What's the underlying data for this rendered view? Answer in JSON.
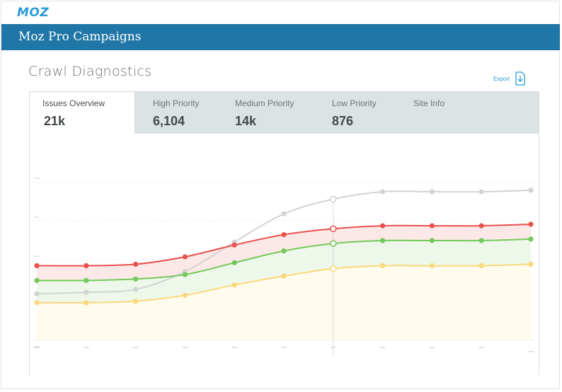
{
  "brand": {
    "logo_text": "MOZ"
  },
  "header": {
    "title": "Moz Pro Campaigns"
  },
  "page": {
    "title": "Crawl Diagnostics",
    "export_label": "Export"
  },
  "tabs": [
    {
      "label": "Issues Overview",
      "value": "21k",
      "active": true
    },
    {
      "label": "High Priority",
      "value": "6,104",
      "active": false
    },
    {
      "label": "Medium Priority",
      "value": "14k",
      "active": false
    },
    {
      "label": "Low Priority",
      "value": "876",
      "active": false
    },
    {
      "label": "Site Info",
      "value": "",
      "active": false
    }
  ],
  "colors": {
    "header": "#2076a6",
    "accent": "#2a9bd6",
    "high": "#e8524e",
    "medium": "#73c95b",
    "low": "#fad87a",
    "total": "#d3d3d3"
  },
  "chart_data": {
    "type": "area",
    "x": [
      1,
      2,
      3,
      4,
      5,
      6,
      7,
      8,
      9,
      10,
      11
    ],
    "ylim": [
      0,
      1
    ],
    "grid": true,
    "highlight_index": 6,
    "series": [
      {
        "key": "total",
        "values": [
          0.31,
          0.32,
          0.34,
          0.46,
          0.66,
          0.85,
          0.95,
          1.0,
          1.0,
          1.0,
          1.01
        ]
      },
      {
        "key": "high",
        "values": [
          0.5,
          0.5,
          0.51,
          0.56,
          0.64,
          0.71,
          0.75,
          0.77,
          0.77,
          0.77,
          0.78
        ]
      },
      {
        "key": "medium",
        "values": [
          0.4,
          0.4,
          0.41,
          0.44,
          0.52,
          0.6,
          0.65,
          0.67,
          0.67,
          0.67,
          0.68
        ]
      },
      {
        "key": "low",
        "values": [
          0.25,
          0.25,
          0.26,
          0.3,
          0.37,
          0.43,
          0.48,
          0.5,
          0.5,
          0.5,
          0.51
        ]
      }
    ]
  }
}
